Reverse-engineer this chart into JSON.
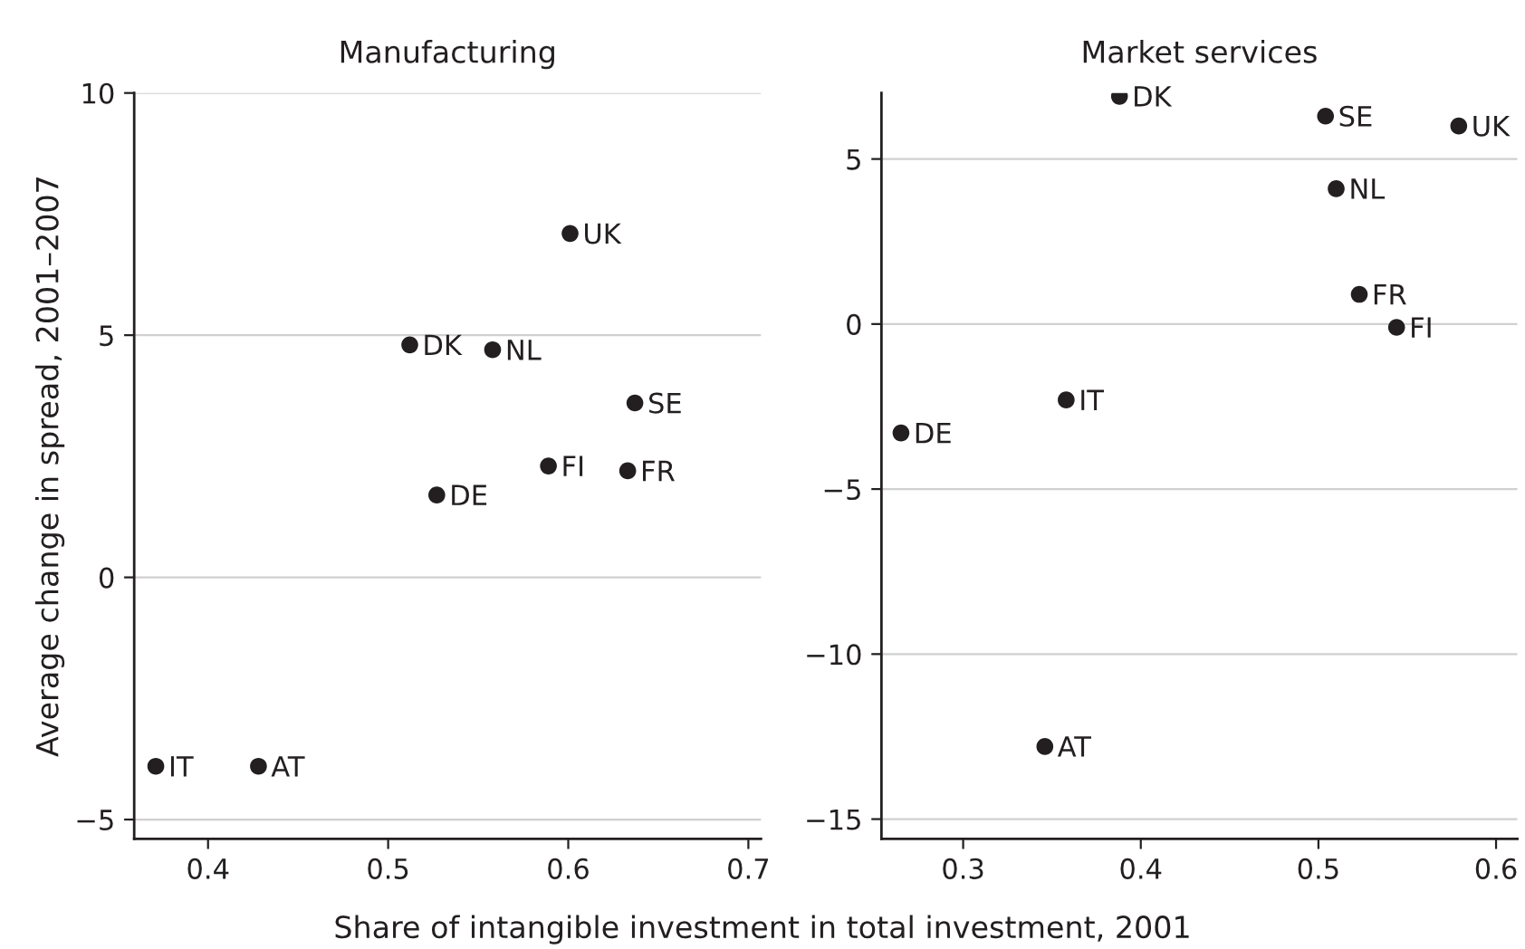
{
  "chart_data": [
    {
      "type": "scatter",
      "title": "Manufacturing",
      "ylabel": "Average change in spread, 2001–2007",
      "xlabel": "Share of intangible investment in total investment, 2001",
      "color": "#231f20",
      "marker": "circle",
      "grid": "y",
      "x": [
        0.601,
        0.512,
        0.558,
        0.637,
        0.589,
        0.633,
        0.527,
        0.371,
        0.428
      ],
      "values": [
        7.1,
        4.8,
        4.7,
        3.6,
        2.3,
        2.2,
        1.7,
        -3.9,
        -3.9
      ],
      "annotations": [
        {
          "text": "UK",
          "x": 0.601,
          "y": 7.1
        },
        {
          "text": "DK",
          "x": 0.512,
          "y": 4.8
        },
        {
          "text": "NL",
          "x": 0.558,
          "y": 4.7
        },
        {
          "text": "SE",
          "x": 0.637,
          "y": 3.6
        },
        {
          "text": "FI",
          "x": 0.589,
          "y": 2.3
        },
        {
          "text": "FR",
          "x": 0.633,
          "y": 2.2
        },
        {
          "text": "DE",
          "x": 0.527,
          "y": 1.7
        },
        {
          "text": "IT",
          "x": 0.371,
          "y": -3.9
        },
        {
          "text": "AT",
          "x": 0.428,
          "y": -3.9
        }
      ],
      "xlim": [
        0.359,
        0.707
      ],
      "xticks": [
        0.4,
        0.5,
        0.6,
        0.7
      ],
      "ylim": [
        -5.4,
        10
      ],
      "yticks": [
        {
          "value": -5,
          "label": "−5"
        },
        0,
        5,
        10
      ]
    },
    {
      "type": "scatter",
      "title": "Market services",
      "color": "#231f20",
      "marker": "circle",
      "grid": "y",
      "x": [
        0.388,
        0.504,
        0.579,
        0.51,
        0.523,
        0.544,
        0.358,
        0.265,
        0.346
      ],
      "values": [
        6.9,
        6.3,
        6.0,
        4.1,
        0.9,
        -0.1,
        -2.3,
        -3.3,
        -12.8
      ],
      "annotations": [
        {
          "text": "DK",
          "x": 0.388,
          "y": 6.9
        },
        {
          "text": "SE",
          "x": 0.504,
          "y": 6.3
        },
        {
          "text": "UK",
          "x": 0.579,
          "y": 6.0
        },
        {
          "text": "NL",
          "x": 0.51,
          "y": 4.1
        },
        {
          "text": "FR",
          "x": 0.523,
          "y": 0.9
        },
        {
          "text": "FI",
          "x": 0.544,
          "y": -0.1
        },
        {
          "text": "IT",
          "x": 0.358,
          "y": -2.3
        },
        {
          "text": "DE",
          "x": 0.265,
          "y": -3.3
        },
        {
          "text": "AT",
          "x": 0.346,
          "y": -12.8
        }
      ],
      "xlim": [
        0.254,
        0.612
      ],
      "xticks": [
        0.3,
        0.4,
        0.5,
        0.6
      ],
      "ylim": [
        -15.6,
        7
      ],
      "yticks": [
        {
          "value": -15,
          "label": "−15"
        },
        {
          "value": -10,
          "label": "−10"
        },
        {
          "value": -5,
          "label": "−5"
        },
        0,
        5
      ]
    }
  ]
}
